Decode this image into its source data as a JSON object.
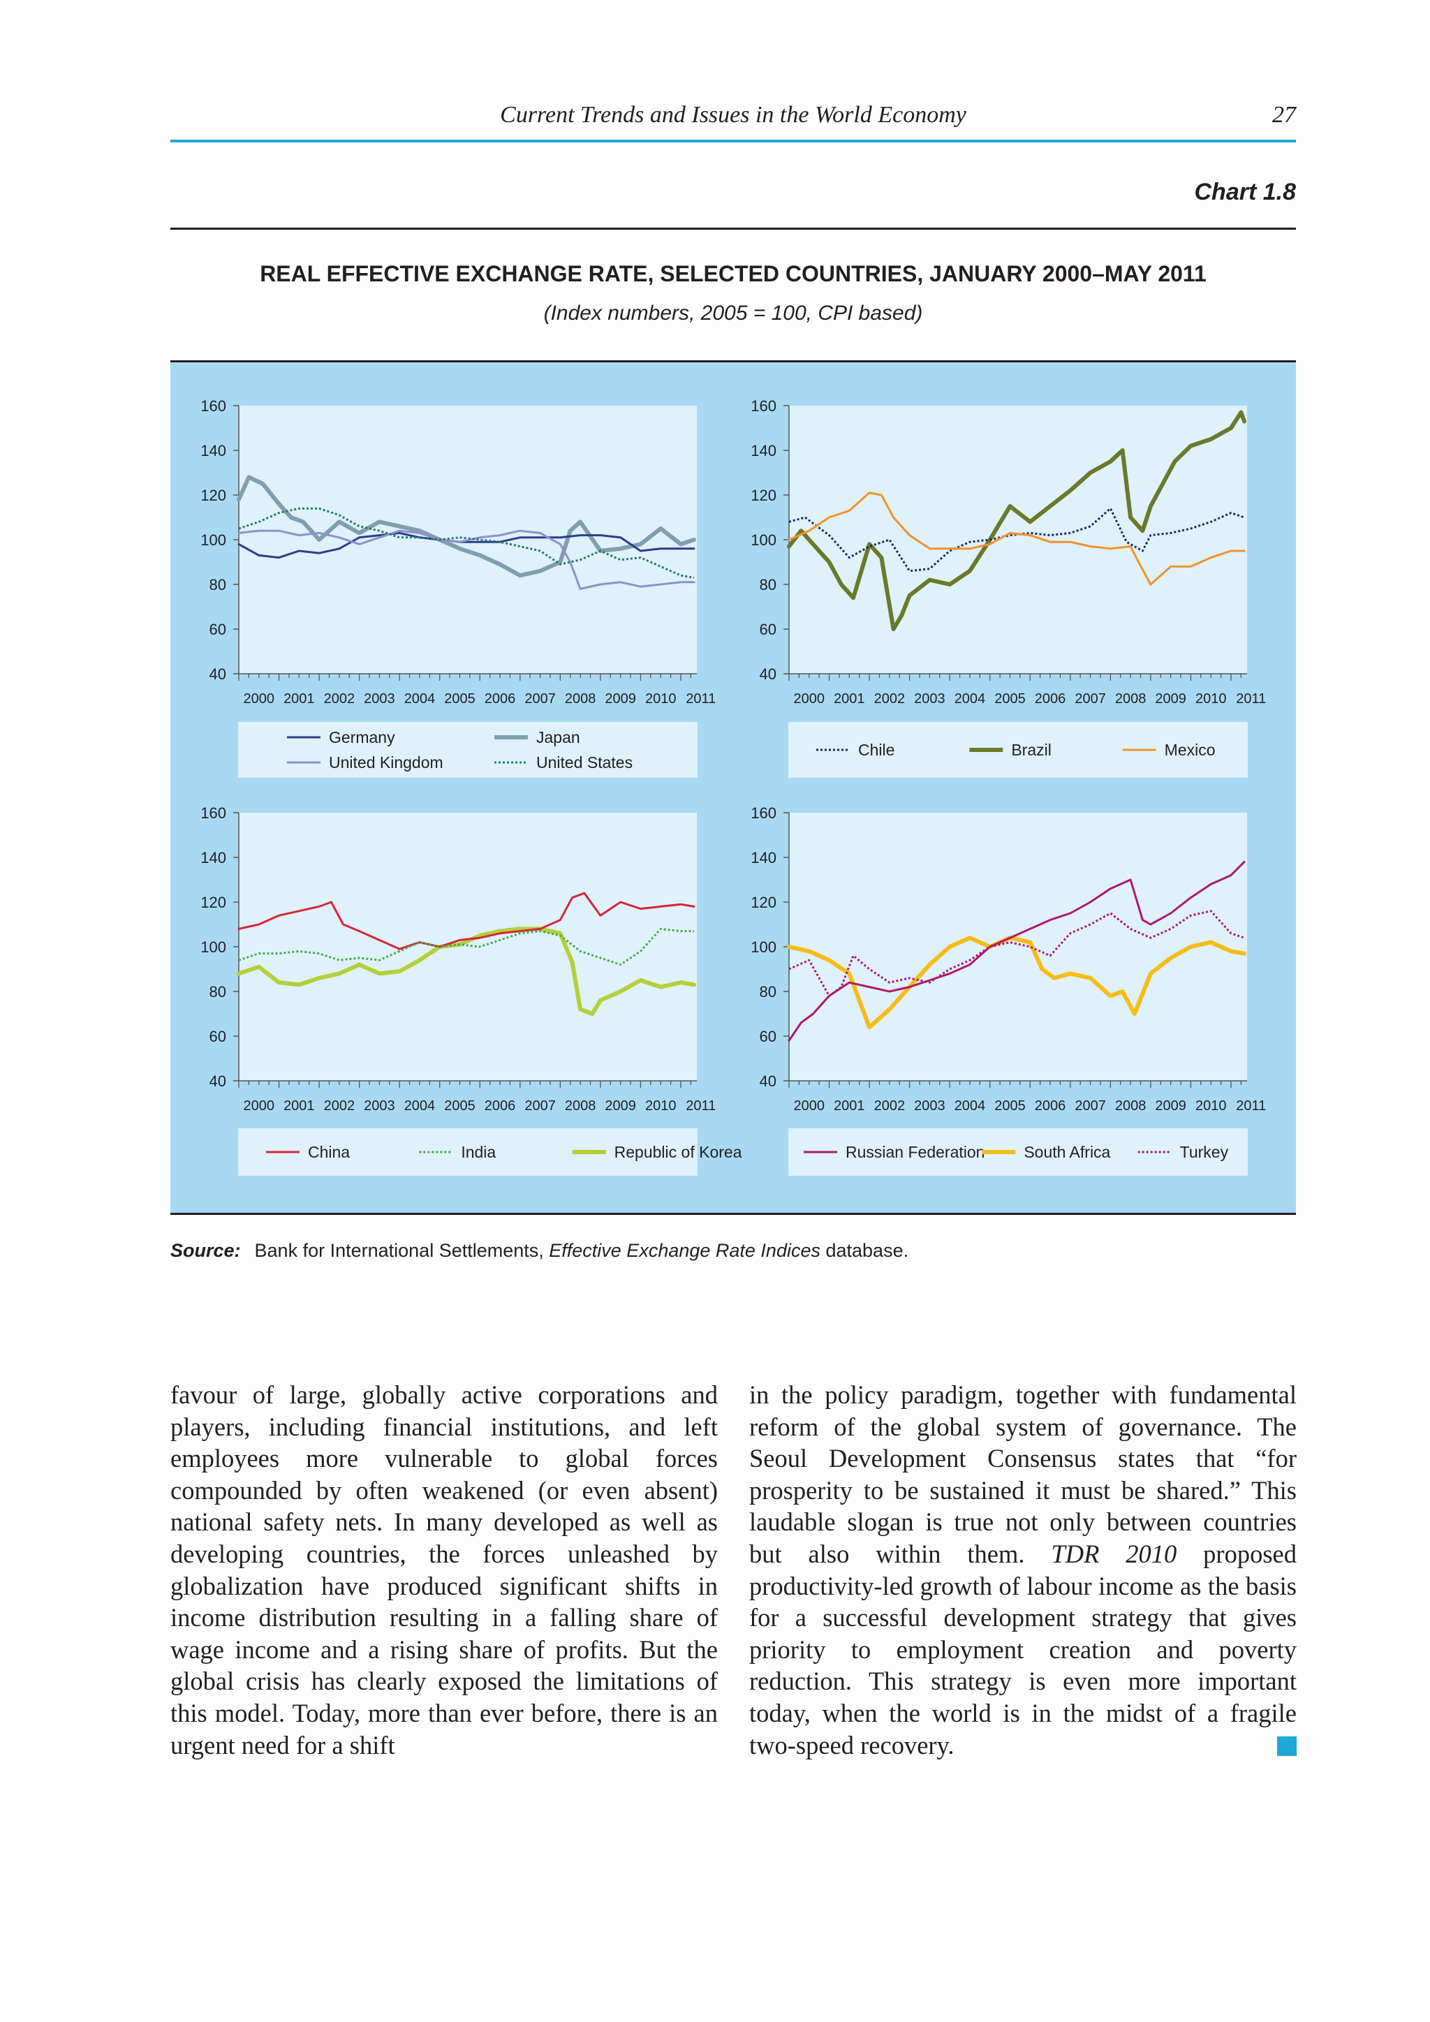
{
  "header": {
    "running_title": "Current Trends and Issues in the World Economy",
    "page_number": "27"
  },
  "chart_label": "Chart 1.8",
  "chart_title": "REAL EFFECTIVE EXCHANGE RATE, SELECTED COUNTRIES, JANUARY 2000–MAY 2011",
  "chart_subtitle": "(Index numbers, 2005 = 100, CPI based)",
  "colors": {
    "accent": "#1fa7d6",
    "panel_bg": "#a9d9f2",
    "plot_bg": "#dff1fa"
  },
  "chart_data": [
    {
      "type": "line",
      "x_ticks": [
        "2000",
        "2001",
        "2002",
        "2003",
        "2004",
        "2005",
        "2006",
        "2007",
        "2008",
        "2009",
        "2010",
        "2011"
      ],
      "ylim": [
        40,
        160
      ],
      "y_ticks": [
        40,
        60,
        80,
        100,
        120,
        140,
        160
      ],
      "series": [
        {
          "name": "Germany",
          "color": "#2b3d8f",
          "style": "solid",
          "width": 3,
          "x": [
            2000,
            2000.5,
            2001,
            2001.5,
            2002,
            2002.5,
            2003,
            2003.5,
            2004,
            2004.5,
            2005,
            2005.5,
            2006,
            2006.5,
            2007,
            2007.5,
            2008,
            2008.5,
            2009,
            2009.5,
            2010,
            2010.5,
            2011,
            2011.33
          ],
          "y": [
            98,
            93,
            92,
            95,
            94,
            96,
            101,
            102,
            103,
            101,
            100,
            99,
            99,
            99,
            101,
            101,
            101,
            102,
            102,
            101,
            95,
            96,
            96,
            96
          ]
        },
        {
          "name": "United Kingdom",
          "color": "#8b92cc",
          "style": "solid",
          "width": 3,
          "x": [
            2000,
            2000.5,
            2001,
            2001.5,
            2002,
            2002.5,
            2003,
            2003.5,
            2004,
            2004.5,
            2005,
            2005.5,
            2006,
            2006.5,
            2007,
            2007.5,
            2008,
            2008.25,
            2008.5,
            2009,
            2009.5,
            2010,
            2010.5,
            2011,
            2011.33
          ],
          "y": [
            103,
            104,
            104,
            102,
            103,
            101,
            98,
            101,
            104,
            103,
            100,
            99,
            101,
            102,
            104,
            103,
            98,
            90,
            78,
            80,
            81,
            79,
            80,
            81,
            81
          ]
        },
        {
          "name": "Japan",
          "color": "#7f9fb0",
          "style": "solid",
          "width": 6,
          "x": [
            2000,
            2000.25,
            2000.6,
            2001,
            2001.3,
            2001.6,
            2002,
            2002.5,
            2003,
            2003.5,
            2004,
            2004.5,
            2005,
            2005.5,
            2006,
            2006.5,
            2007,
            2007.5,
            2008,
            2008.25,
            2008.5,
            2009,
            2009.5,
            2010,
            2010.5,
            2011,
            2011.33
          ],
          "y": [
            118,
            128,
            125,
            116,
            110,
            108,
            100,
            108,
            103,
            108,
            106,
            104,
            100,
            96,
            93,
            89,
            84,
            86,
            90,
            104,
            108,
            95,
            96,
            98,
            105,
            98,
            100
          ]
        },
        {
          "name": "United States",
          "color": "#1e7a6a",
          "style": "dotted",
          "width": 3,
          "x": [
            2000,
            2000.5,
            2001,
            2001.5,
            2002,
            2002.5,
            2003,
            2003.5,
            2004,
            2004.5,
            2005,
            2005.5,
            2006,
            2006.5,
            2007,
            2007.5,
            2008,
            2008.5,
            2009,
            2009.5,
            2010,
            2010.5,
            2011,
            2011.33
          ],
          "y": [
            105,
            108,
            112,
            114,
            114,
            111,
            106,
            104,
            101,
            101,
            100,
            101,
            100,
            99,
            97,
            95,
            89,
            91,
            95,
            91,
            92,
            88,
            84,
            83
          ]
        }
      ],
      "legend": {
        "placement": "bottom"
      }
    },
    {
      "type": "line",
      "x_ticks": [
        "2000",
        "2001",
        "2002",
        "2003",
        "2004",
        "2005",
        "2006",
        "2007",
        "2008",
        "2009",
        "2010",
        "2011"
      ],
      "ylim": [
        40,
        160
      ],
      "y_ticks": [
        40,
        60,
        80,
        100,
        120,
        140,
        160
      ],
      "series": [
        {
          "name": "Chile",
          "color": "#1b2b5e",
          "style": "dotted",
          "width": 3,
          "x": [
            2000,
            2000.4,
            2001,
            2001.5,
            2002,
            2002.5,
            2003,
            2003.5,
            2004,
            2004.5,
            2005,
            2005.5,
            2006,
            2006.5,
            2007,
            2007.5,
            2008,
            2008.4,
            2008.8,
            2009,
            2009.5,
            2010,
            2010.5,
            2011,
            2011.33
          ],
          "y": [
            108,
            110,
            102,
            92,
            97,
            100,
            86,
            87,
            95,
            99,
            100,
            102,
            103,
            102,
            103,
            106,
            114,
            99,
            95,
            102,
            103,
            105,
            108,
            112,
            110
          ]
        },
        {
          "name": "Brazil",
          "color": "#6b7a2a",
          "style": "solid",
          "width": 6,
          "x": [
            2000,
            2000.3,
            2000.6,
            2001,
            2001.3,
            2001.6,
            2002,
            2002.3,
            2002.6,
            2002.8,
            2003,
            2003.5,
            2004,
            2004.5,
            2005,
            2005.5,
            2006,
            2006.5,
            2007,
            2007.5,
            2008,
            2008.3,
            2008.5,
            2008.8,
            2009,
            2009.3,
            2009.6,
            2010,
            2010.5,
            2011,
            2011.25,
            2011.33
          ],
          "y": [
            97,
            104,
            98,
            90,
            80,
            74,
            98,
            92,
            60,
            66,
            75,
            82,
            80,
            86,
            100,
            115,
            108,
            115,
            122,
            130,
            135,
            140,
            110,
            104,
            115,
            125,
            135,
            142,
            145,
            150,
            157,
            153
          ]
        },
        {
          "name": "Mexico",
          "color": "#f0932b",
          "style": "solid",
          "width": 3,
          "x": [
            2000,
            2000.5,
            2001,
            2001.5,
            2002,
            2002.3,
            2002.6,
            2003,
            2003.5,
            2004,
            2004.5,
            2005,
            2005.5,
            2006,
            2006.5,
            2007,
            2007.5,
            2008,
            2008.5,
            2008.7,
            2009,
            2009.5,
            2010,
            2010.5,
            2011,
            2011.33
          ],
          "y": [
            100,
            104,
            110,
            113,
            121,
            120,
            110,
            102,
            96,
            96,
            96,
            98,
            103,
            102,
            99,
            99,
            97,
            96,
            97,
            90,
            80,
            88,
            88,
            92,
            95,
            95
          ]
        }
      ],
      "legend": {
        "placement": "bottom"
      }
    },
    {
      "type": "line",
      "x_ticks": [
        "2000",
        "2001",
        "2002",
        "2003",
        "2004",
        "2005",
        "2006",
        "2007",
        "2008",
        "2009",
        "2010",
        "2011"
      ],
      "ylim": [
        40,
        160
      ],
      "y_ticks": [
        40,
        60,
        80,
        100,
        120,
        140,
        160
      ],
      "series": [
        {
          "name": "China",
          "color": "#d72638",
          "style": "solid",
          "width": 3,
          "x": [
            2000,
            2000.5,
            2001,
            2001.5,
            2002,
            2002.3,
            2002.6,
            2003,
            2003.5,
            2004,
            2004.5,
            2005,
            2005.5,
            2006,
            2006.5,
            2007,
            2007.5,
            2008,
            2008.3,
            2008.6,
            2009,
            2009.5,
            2010,
            2010.5,
            2011,
            2011.33
          ],
          "y": [
            108,
            110,
            114,
            116,
            118,
            120,
            110,
            107,
            103,
            99,
            102,
            100,
            103,
            104,
            106,
            107,
            108,
            112,
            122,
            124,
            114,
            120,
            117,
            118,
            119,
            118
          ]
        },
        {
          "name": "India",
          "color": "#3fae49",
          "style": "dotted",
          "width": 3,
          "x": [
            2000,
            2000.5,
            2001,
            2001.5,
            2002,
            2002.5,
            2003,
            2003.5,
            2004,
            2004.5,
            2005,
            2005.5,
            2006,
            2006.5,
            2007,
            2007.5,
            2008,
            2008.5,
            2009,
            2009.5,
            2010,
            2010.5,
            2011,
            2011.33
          ],
          "y": [
            94,
            97,
            97,
            98,
            97,
            94,
            95,
            94,
            98,
            102,
            100,
            101,
            100,
            103,
            106,
            107,
            105,
            98,
            95,
            92,
            98,
            108,
            107,
            107
          ]
        },
        {
          "name": "Republic of Korea",
          "color": "#b5cf3a",
          "style": "solid",
          "width": 6,
          "x": [
            2000,
            2000.5,
            2001,
            2001.5,
            2002,
            2002.5,
            2003,
            2003.5,
            2004,
            2004.5,
            2005,
            2005.5,
            2006,
            2006.5,
            2007,
            2007.5,
            2008,
            2008.3,
            2008.5,
            2008.8,
            2009,
            2009.5,
            2010,
            2010.5,
            2011,
            2011.33
          ],
          "y": [
            88,
            91,
            84,
            83,
            86,
            88,
            92,
            88,
            89,
            94,
            100,
            101,
            105,
            107,
            108,
            108,
            106,
            93,
            72,
            70,
            76,
            80,
            85,
            82,
            84,
            83
          ]
        }
      ],
      "legend": {
        "placement": "bottom"
      }
    },
    {
      "type": "line",
      "x_ticks": [
        "2000",
        "2001",
        "2002",
        "2003",
        "2004",
        "2005",
        "2006",
        "2007",
        "2008",
        "2009",
        "2010",
        "2011"
      ],
      "ylim": [
        40,
        160
      ],
      "y_ticks": [
        40,
        60,
        80,
        100,
        120,
        140,
        160
      ],
      "series": [
        {
          "name": "Russian Federation",
          "color": "#b0186e",
          "style": "solid",
          "width": 3,
          "x": [
            2000,
            2000.3,
            2000.6,
            2001,
            2001.5,
            2002,
            2002.5,
            2003,
            2003.5,
            2004,
            2004.5,
            2005,
            2005.5,
            2006,
            2006.5,
            2007,
            2007.5,
            2008,
            2008.5,
            2008.8,
            2009,
            2009.5,
            2010,
            2010.5,
            2011,
            2011.33
          ],
          "y": [
            58,
            66,
            70,
            78,
            84,
            82,
            80,
            82,
            85,
            88,
            92,
            100,
            104,
            108,
            112,
            115,
            120,
            126,
            130,
            112,
            110,
            115,
            122,
            128,
            132,
            138
          ]
        },
        {
          "name": "South Africa",
          "color": "#f7bd16",
          "style": "solid",
          "width": 6,
          "x": [
            2000,
            2000.5,
            2001,
            2001.5,
            2002,
            2002.5,
            2003,
            2003.5,
            2004,
            2004.5,
            2005,
            2005.5,
            2006,
            2006.3,
            2006.6,
            2007,
            2007.5,
            2008,
            2008.3,
            2008.6,
            2009,
            2009.5,
            2010,
            2010.5,
            2011,
            2011.33
          ],
          "y": [
            100,
            98,
            94,
            88,
            64,
            72,
            82,
            92,
            100,
            104,
            100,
            104,
            102,
            90,
            86,
            88,
            86,
            78,
            80,
            70,
            88,
            95,
            100,
            102,
            98,
            97
          ]
        },
        {
          "name": "Turkey",
          "color": "#b0186e",
          "style": "dotted",
          "width": 3,
          "x": [
            2000,
            2000.5,
            2001,
            2001.3,
            2001.6,
            2002,
            2002.5,
            2003,
            2003.5,
            2004,
            2004.5,
            2005,
            2005.5,
            2006,
            2006.5,
            2007,
            2007.5,
            2008,
            2008.5,
            2009,
            2009.5,
            2010,
            2010.5,
            2011,
            2011.33
          ],
          "y": [
            90,
            94,
            78,
            82,
            96,
            90,
            84,
            86,
            84,
            90,
            94,
            100,
            102,
            100,
            96,
            106,
            110,
            115,
            108,
            104,
            108,
            114,
            116,
            106,
            104
          ]
        }
      ],
      "legend": {
        "placement": "bottom"
      }
    }
  ],
  "source": {
    "label": "Source:",
    "text_before": "Bank for International Settlements, ",
    "italic": "Effective Exchange Rate Indices",
    "text_after": " database."
  },
  "body": {
    "left_column": "favour of large, globally active corporations and players, including financial institutions, and left employees more vulnerable to global forces compounded by often weakened (or even absent) national safety nets. In many developed as well as developing countries, the forces unleashed by globalization have produced significant shifts in income distribution resulting in a falling share of wage income and a rising share of profits. But the global crisis has clearly exposed the limitations of this model. Today, more than ever before, there is an urgent need for a shift",
    "right_before": "in the policy paradigm, together with fundamental reform of the global system of governance. The Seoul Development Consensus states that “for prosperity to be sustained it must be shared.” This laudable slogan is true not only between countries but also within them. ",
    "right_italic": "TDR 2010",
    "right_after": " proposed productivity-led growth of labour income as the basis for a successful development strategy that gives priority to employment creation and poverty reduction. This strategy is even more important today, when the world is in the midst of a fragile two-speed recovery."
  }
}
